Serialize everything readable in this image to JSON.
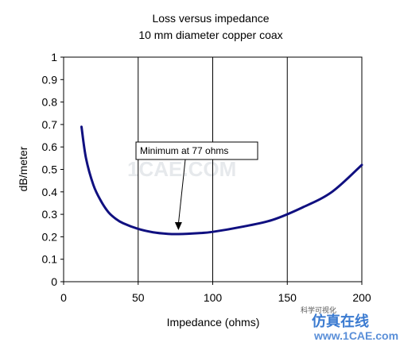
{
  "chart_data": {
    "type": "line",
    "title": "Loss versus impedance",
    "subtitle": "10 mm diameter copper coax",
    "xlabel": "Impedance (ohms)",
    "ylabel": "dB/meter",
    "xlim": [
      0,
      200
    ],
    "ylim": [
      0,
      1
    ],
    "x_ticks": [
      0,
      50,
      100,
      150,
      200
    ],
    "y_ticks": [
      0,
      0.1,
      0.2,
      0.3,
      0.4,
      0.5,
      0.6,
      0.7,
      0.8,
      0.9,
      1
    ],
    "grid": "vertical",
    "legend": "none",
    "series": [
      {
        "color": "#101080",
        "x": [
          12,
          15,
          20,
          25,
          30,
          35,
          40,
          50,
          60,
          70,
          77,
          90,
          100,
          120,
          140,
          160,
          180,
          200
        ],
        "y": [
          0.69,
          0.55,
          0.43,
          0.36,
          0.31,
          0.28,
          0.26,
          0.235,
          0.22,
          0.213,
          0.212,
          0.216,
          0.222,
          0.245,
          0.275,
          0.33,
          0.4,
          0.52
        ]
      }
    ],
    "annotations": [
      {
        "text": "Minimum at 77 ohms",
        "x": 77,
        "y": 0.212
      }
    ]
  },
  "watermark": {
    "ghost_text": "1CAE.COM",
    "brand_cn": "仿真在线",
    "brand_url": "www.1CAE.com",
    "wechat_label": "科学可视化"
  }
}
